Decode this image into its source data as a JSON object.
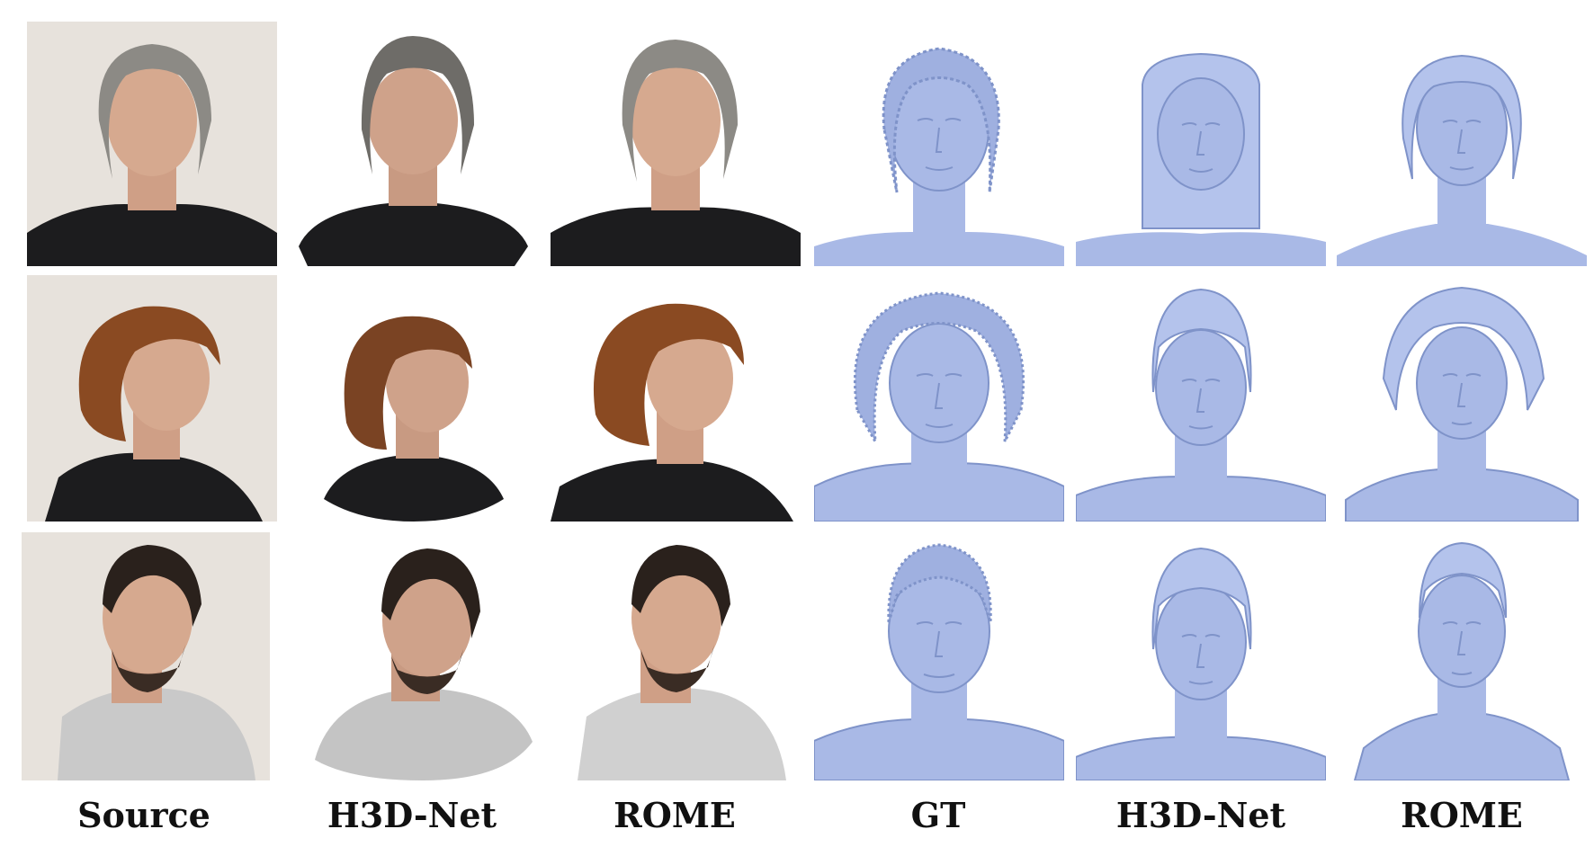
{
  "columns": [
    "Source",
    "H3D-Net",
    "ROME",
    "GT",
    "H3D-Net",
    "ROME"
  ],
  "colors": {
    "mesh": "#a9b9e6",
    "mesh_shade": "#7f93c9",
    "mesh_light": "#d4def7",
    "grey_hair": "#8c8a85",
    "curly_hair": "#8a4a22",
    "dark_hair": "#2a211c",
    "skin": "#d6a98f",
    "black_shirt": "#1c1c1e",
    "grey_shirt": "#c9c9c9",
    "wall": "#e7e2dc"
  },
  "rows": [
    {
      "subject": "woman-grey-hair"
    },
    {
      "subject": "woman-curly-hair"
    },
    {
      "subject": "man-dark-hair"
    }
  ]
}
